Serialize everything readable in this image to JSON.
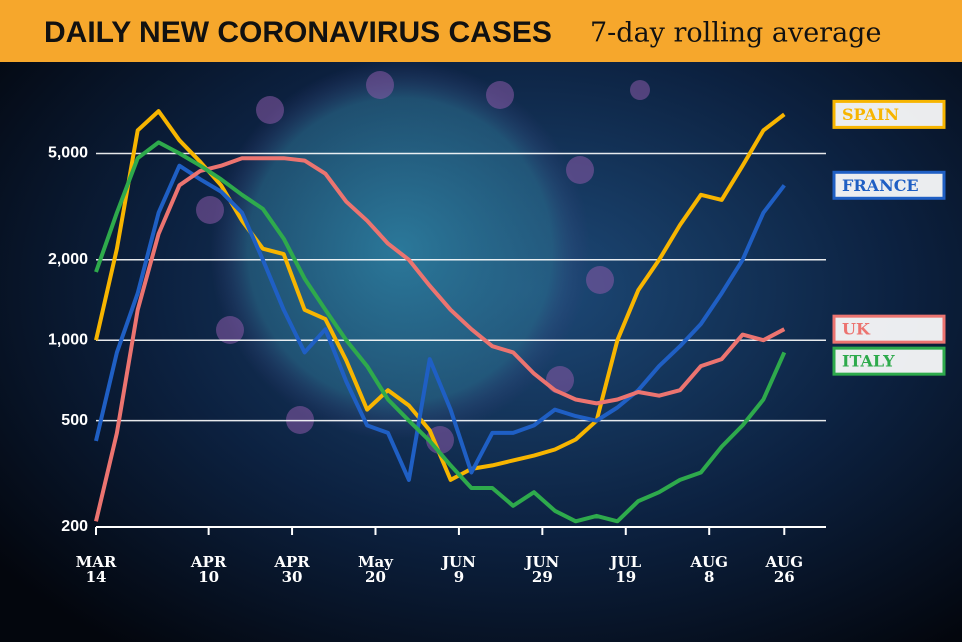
{
  "chart_data": {
    "type": "line",
    "title": "DAILY NEW CORONAVIRUS CASES",
    "subtitle": "7-day rolling average",
    "x": [
      "MAR 14",
      "MAR 19",
      "MAR 24",
      "MAR 29",
      "APR 3",
      "APR 8",
      "APR 13",
      "APR 18",
      "APR 23",
      "APR 28",
      "MAY 3",
      "MAY 8",
      "MAY 13",
      "MAY 18",
      "MAY 23",
      "MAY 28",
      "JUN 2",
      "JUN 7",
      "JUN 12",
      "JUN 17",
      "JUN 22",
      "JUN 27",
      "JUL 2",
      "JUL 7",
      "JUL 12",
      "JUL 17",
      "JUL 22",
      "JUL 27",
      "AUG 1",
      "AUG 6",
      "AUG 11",
      "AUG 16",
      "AUG 21",
      "AUG 26"
    ],
    "series": [
      {
        "name": "SPAIN",
        "color": "#f7b500",
        "values": [
          1000,
          2200,
          6100,
          7200,
          5600,
          4650,
          3800,
          2800,
          2200,
          2100,
          1300,
          1200,
          840,
          550,
          650,
          570,
          460,
          300,
          330,
          340,
          355,
          370,
          390,
          425,
          500,
          1000,
          1540,
          2000,
          2700,
          3500,
          3350,
          4500,
          6100,
          7000
        ]
      },
      {
        "name": "FRANCE",
        "color": "#1f5fc4",
        "values": [
          420,
          900,
          1500,
          3000,
          4500,
          4000,
          3600,
          3000,
          2000,
          1300,
          900,
          1100,
          700,
          480,
          450,
          300,
          850,
          550,
          320,
          450,
          450,
          480,
          550,
          520,
          500,
          560,
          650,
          800,
          950,
          1150,
          1500,
          2000,
          3000,
          3800
        ]
      },
      {
        "name": "UK",
        "color": "#ec7470",
        "values": [
          210,
          450,
          1300,
          2500,
          3800,
          4300,
          4500,
          4800,
          4800,
          4800,
          4700,
          4200,
          3300,
          2800,
          2300,
          2000,
          1600,
          1300,
          1100,
          950,
          900,
          750,
          650,
          600,
          580,
          600,
          640,
          620,
          650,
          800,
          850,
          1050,
          1000,
          1100
        ]
      },
      {
        "name": "ITALY",
        "color": "#2eaa4c",
        "values": [
          1800,
          3000,
          4800,
          5500,
          5000,
          4500,
          4000,
          3500,
          3100,
          2400,
          1700,
          1300,
          1000,
          800,
          600,
          500,
          420,
          340,
          280,
          280,
          240,
          270,
          230,
          210,
          220,
          210,
          250,
          270,
          300,
          320,
          400,
          480,
          600,
          900
        ]
      }
    ],
    "xlim": [
      "MAR 14",
      "SEP 5"
    ],
    "xticks": [
      "MAR 14",
      "APR 10",
      "APR 30",
      "May 20",
      "JUN 9",
      "JUN 29",
      "JUL 19",
      "AUG 8",
      "AUG 26"
    ],
    "ylim": [
      200,
      10000
    ],
    "yticks": [
      200,
      500,
      {
        "value": 1000,
        "label": "1,000"
      },
      {
        "value": 2000,
        "label": "2,000"
      },
      {
        "value": 5000,
        "label": "5,000"
      }
    ],
    "y_scale": "log",
    "grid": true,
    "legend_position": "right"
  }
}
